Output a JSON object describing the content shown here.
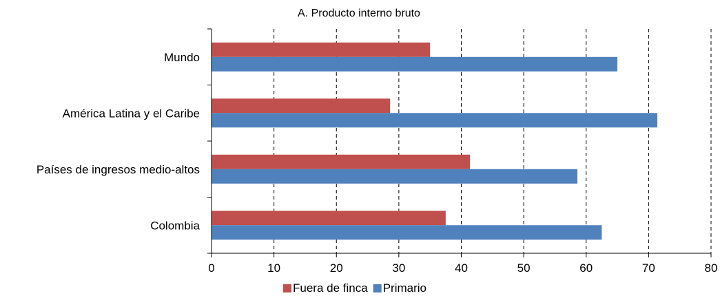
{
  "chart_data": {
    "type": "bar",
    "orientation": "horizontal",
    "title": "A. Producto interno bruto",
    "categories": [
      "Mundo",
      "América Latina y el Caribe",
      "Países de ingresos medio-altos",
      "Colombia"
    ],
    "series": [
      {
        "name": "Fuera de finca",
        "color": "#c0504d",
        "values": [
          35,
          28.6,
          41.4,
          37.5
        ]
      },
      {
        "name": "Primario",
        "color": "#4f81bd",
        "values": [
          65,
          71.4,
          58.6,
          62.5
        ]
      }
    ],
    "xlim": [
      0,
      80
    ],
    "xticks": [
      0,
      10,
      20,
      30,
      40,
      50,
      60,
      70,
      80
    ],
    "grid": "vertical-dashed",
    "legend": "bottom-center"
  }
}
